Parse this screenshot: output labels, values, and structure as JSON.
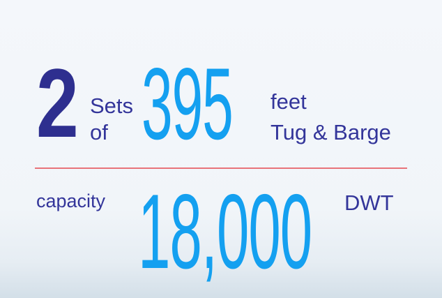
{
  "sets": {
    "count": "2",
    "line1": "Sets",
    "line2": "of"
  },
  "length": {
    "value": "395",
    "unit_line1": "feet",
    "unit_line2": "Tug & Barge"
  },
  "capacity": {
    "label": "capacity",
    "value": "18,000",
    "unit": "DWT"
  },
  "colors": {
    "navy": "#33359a",
    "blue": "#14a0f0",
    "divider": "#e8737a"
  }
}
